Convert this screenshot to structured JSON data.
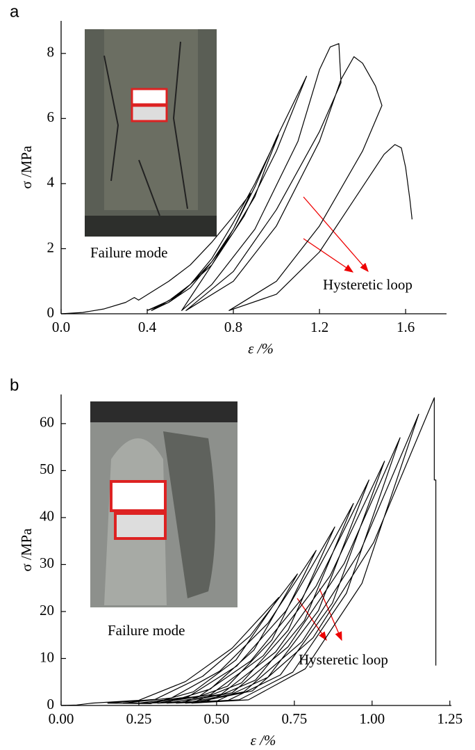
{
  "chart_data": [
    {
      "type": "line",
      "panel_label": "a",
      "xlabel": "ε /%",
      "ylabel": "σ /MPa",
      "xlim": [
        0,
        1.79
      ],
      "ylim": [
        0,
        9
      ],
      "xticks": [
        {
          "value": 0,
          "label": "0.0"
        },
        0.4,
        0.8,
        1.2,
        1.6
      ],
      "yticks": [
        0,
        2,
        4,
        6,
        8
      ],
      "annotations": [
        "Failure mode",
        "Hysteretic loop"
      ],
      "series": [
        {
          "color": "#000000",
          "x": [
            0,
            0.1,
            0.2,
            0.3,
            0.34,
            0.36,
            0.5,
            0.6,
            0.7,
            0.8,
            0.88,
            0.8,
            0.7,
            0.6,
            0.5,
            0.4,
            0.5,
            0.6,
            0.7,
            0.8,
            0.9,
            0.95,
            1.01,
            0.9,
            0.8,
            0.7,
            0.6,
            0.5,
            0.42,
            0.55,
            0.7,
            0.85,
            1.0,
            1.14,
            1.0,
            0.9,
            0.8,
            0.7,
            0.6,
            0.56,
            0.7,
            0.9,
            1.1,
            1.2,
            1.25,
            1.29,
            1.3,
            1.2,
            1.0,
            0.8,
            0.58,
            0.8,
            1.0,
            1.2,
            1.3,
            1.36,
            1.4,
            1.46,
            1.49,
            1.4,
            1.2,
            1.0,
            0.78,
            1.0,
            1.2,
            1.4,
            1.5,
            1.55,
            1.58,
            1.6,
            1.62,
            1.63
          ],
          "values": [
            0,
            0.04,
            0.15,
            0.35,
            0.5,
            0.42,
            1.0,
            1.5,
            2.2,
            3.0,
            3.7,
            2.6,
            1.6,
            0.8,
            0.35,
            0.1,
            0.4,
            0.9,
            1.6,
            2.5,
            3.6,
            4.5,
            5.5,
            4.0,
            2.8,
            1.7,
            0.9,
            0.35,
            0.1,
            0.6,
            1.5,
            3.0,
            5.0,
            7.3,
            5.4,
            3.9,
            2.6,
            1.5,
            0.5,
            0.1,
            0.9,
            2.6,
            5.3,
            7.5,
            8.2,
            8.3,
            7.1,
            5.6,
            3.2,
            1.3,
            0.1,
            1.0,
            2.7,
            5.3,
            7.2,
            7.9,
            7.7,
            7.0,
            6.4,
            5.0,
            2.7,
            1.0,
            0.1,
            0.6,
            1.9,
            3.9,
            4.9,
            5.2,
            5.1,
            4.5,
            3.5,
            2.9
          ]
        }
      ]
    },
    {
      "type": "line",
      "panel_label": "b",
      "xlabel": "ε /%",
      "ylabel": "σ /MPa",
      "xlim": [
        0,
        1.255
      ],
      "ylim": [
        0,
        66.2
      ],
      "xticks": [
        {
          "value": 0,
          "label": "0.00"
        },
        {
          "value": 0.25,
          "label": "0.25"
        },
        {
          "value": 0.5,
          "label": "0.50"
        },
        {
          "value": 0.75,
          "label": "0.75"
        },
        {
          "value": 1,
          "label": "1.00"
        },
        {
          "value": 1.25,
          "label": "1.25"
        }
      ],
      "yticks": [
        0,
        10,
        20,
        30,
        40,
        50,
        60
      ],
      "annotations": [
        "Failure mode",
        "Hysteretic loop"
      ],
      "series": [
        {
          "color": "#000000",
          "x": [
            0,
            0.05,
            0.1,
            0.25,
            0.4,
            0.55,
            0.7,
            0.5625,
            0.425,
            0.2875,
            0.15,
            0.3025,
            0.455,
            0.6075,
            0.76,
            0.62,
            0.48,
            0.34,
            0.2,
            0.355,
            0.51,
            0.665,
            0.82,
            0.6775,
            0.535,
            0.3925,
            0.25,
            0.4075,
            0.565,
            0.7225,
            0.88,
            0.73,
            0.58,
            0.43,
            0.28,
            0.445,
            0.61,
            0.775,
            0.94,
            0.7825,
            0.625,
            0.4675,
            0.31,
            0.48,
            0.65,
            0.82,
            0.99,
            0.8275,
            0.665,
            0.5025,
            0.34,
            0.515,
            0.69,
            0.865,
            1.04,
            0.8725,
            0.705,
            0.5375,
            0.37,
            0.55,
            0.73,
            0.91,
            1.09,
            0.9175,
            0.745,
            0.5725,
            0.4,
            0.5875,
            0.775,
            0.9625,
            1.15,
            0.9675,
            0.785,
            0.6025,
            0.42,
            0.615,
            0.81,
            1.005,
            1.2,
            1.2,
            1.205,
            1.205
          ],
          "values": [
            0,
            0.1,
            0.5,
            1.1,
            5.1,
            12.2,
            23,
            9.7,
            2.9,
            0.4,
            0.5,
            1.3,
            6.2,
            14.8,
            28,
            11.8,
            3.5,
            0.6,
            0.5,
            1.6,
            7.3,
            17.5,
            33,
            13.9,
            4.1,
            0.7,
            0.5,
            1.8,
            8.4,
            20.1,
            38,
            16,
            4.8,
            0.8,
            0.5,
            2.0,
            9.5,
            22.8,
            43,
            18.1,
            5.4,
            0.9,
            0.5,
            2.3,
            10.6,
            25.4,
            48,
            20.2,
            6,
            1,
            0.5,
            2.4,
            11.4,
            27.6,
            52,
            21.8,
            6.5,
            1.1,
            0.5,
            2.7,
            12.5,
            30.2,
            57,
            23.9,
            7.1,
            1.2,
            0.5,
            2.9,
            13.6,
            32.9,
            62,
            26,
            7.8,
            1.2,
            0.5,
            3.1,
            14.4,
            34.7,
            65.5,
            48,
            48,
            8.5
          ]
        }
      ]
    }
  ]
}
